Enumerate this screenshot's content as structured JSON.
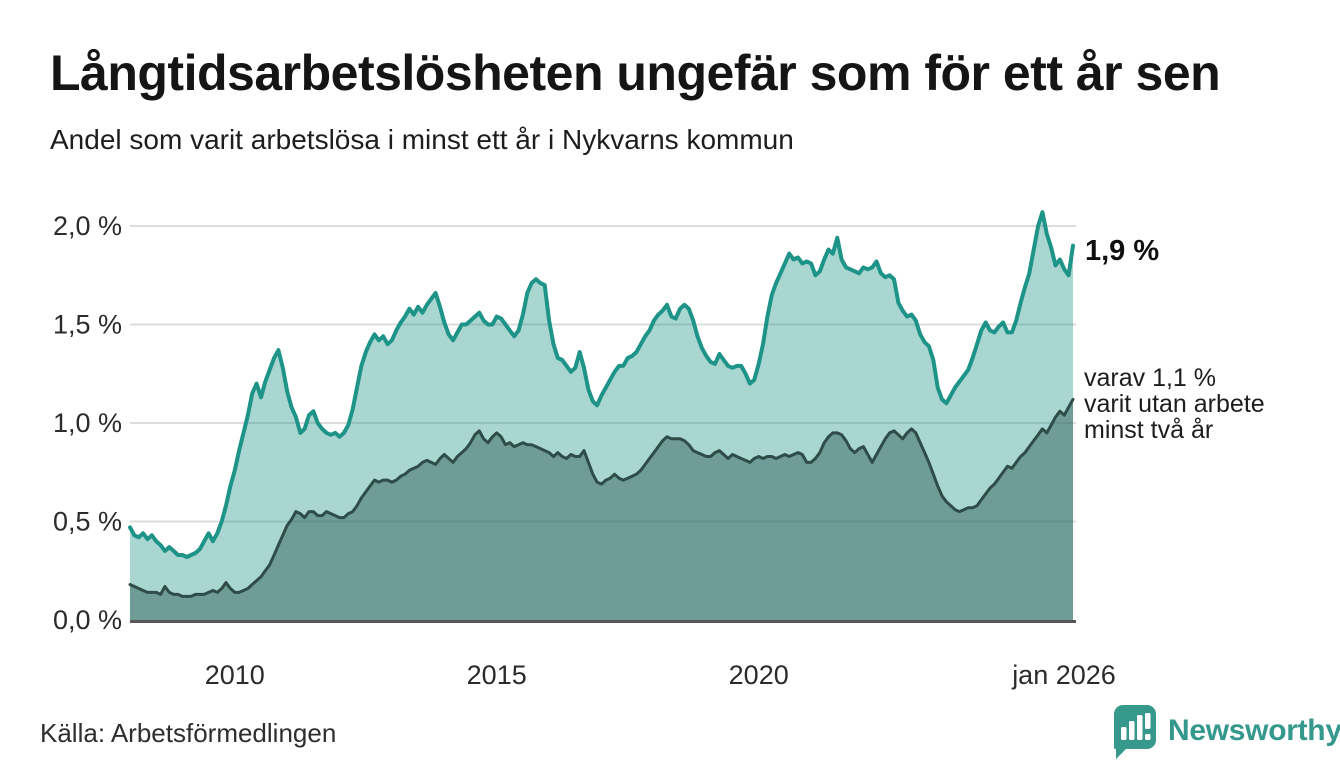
{
  "header": {
    "title": "Långtidsarbetslösheten ungefär som för ett år sen",
    "subtitle": "Andel som varit arbetslösa i minst ett år i Nykvarns kommun"
  },
  "footer": {
    "source": "Källa: Arbetsförmedlingen",
    "brand": "Newsworthy",
    "brand_color": "#35988c"
  },
  "chart_data": {
    "type": "area",
    "title": "Långtidsarbetslösheten ungefär som för ett år sen",
    "subtitle": "Andel som varit arbetslösa i minst ett år i Nykvarns kommun",
    "unit": "%",
    "layout": "overlaid-subset",
    "grid": "horizontal-only",
    "colors": {
      "gridline": "#dcdcdc",
      "baseline": "#565656",
      "accent_teal": "#1d9487",
      "dark_slate": "#2e4d48"
    },
    "y_axis": {
      "range": [
        0,
        2.15
      ],
      "ticks": [
        {
          "label": "0,0 %",
          "value": 0
        },
        {
          "label": "0,5 %",
          "value": 0.5
        },
        {
          "label": "1,0 %",
          "value": 1.0
        },
        {
          "label": "1,5 %",
          "value": 1.5
        },
        {
          "label": "2,0 %",
          "value": 2.0
        }
      ]
    },
    "x_axis": {
      "start": "2008-01",
      "end": "2026-01",
      "ticks": [
        {
          "label": "2010",
          "month_index": 24
        },
        {
          "label": "2015",
          "month_index": 84
        },
        {
          "label": "2020",
          "month_index": 144
        },
        {
          "label": "jan 2026",
          "month_index": 216
        }
      ]
    },
    "annotations": {
      "latest": "1,9 %",
      "subset": "varav 1,1 %\nvarit utan arbete\nminst två år"
    },
    "series": [
      {
        "name": "Andel arbetslösa minst ett år",
        "latest_label": "1,9 %",
        "color": "#1d9487",
        "fill": "rgba(29,148,132,0.38)",
        "values": [
          0.47,
          0.43,
          0.42,
          0.44,
          0.41,
          0.43,
          0.4,
          0.38,
          0.35,
          0.37,
          0.35,
          0.33,
          0.33,
          0.32,
          0.33,
          0.34,
          0.36,
          0.4,
          0.44,
          0.4,
          0.44,
          0.5,
          0.58,
          0.68,
          0.76,
          0.86,
          0.95,
          1.04,
          1.15,
          1.2,
          1.13,
          1.21,
          1.27,
          1.33,
          1.37,
          1.28,
          1.16,
          1.08,
          1.03,
          0.95,
          0.97,
          1.04,
          1.06,
          1.0,
          0.97,
          0.95,
          0.94,
          0.95,
          0.93,
          0.95,
          0.99,
          1.07,
          1.18,
          1.29,
          1.36,
          1.41,
          1.45,
          1.42,
          1.44,
          1.4,
          1.42,
          1.47,
          1.51,
          1.54,
          1.58,
          1.55,
          1.59,
          1.56,
          1.6,
          1.63,
          1.66,
          1.59,
          1.51,
          1.45,
          1.42,
          1.46,
          1.5,
          1.5,
          1.52,
          1.54,
          1.56,
          1.52,
          1.5,
          1.5,
          1.54,
          1.53,
          1.5,
          1.47,
          1.44,
          1.47,
          1.55,
          1.66,
          1.71,
          1.73,
          1.71,
          1.7,
          1.52,
          1.4,
          1.33,
          1.32,
          1.29,
          1.26,
          1.28,
          1.36,
          1.28,
          1.17,
          1.11,
          1.09,
          1.14,
          1.18,
          1.22,
          1.26,
          1.29,
          1.29,
          1.33,
          1.34,
          1.36,
          1.4,
          1.44,
          1.47,
          1.52,
          1.55,
          1.57,
          1.6,
          1.54,
          1.53,
          1.58,
          1.6,
          1.58,
          1.52,
          1.44,
          1.38,
          1.34,
          1.31,
          1.3,
          1.35,
          1.32,
          1.29,
          1.28,
          1.29,
          1.29,
          1.25,
          1.2,
          1.22,
          1.3,
          1.4,
          1.54,
          1.65,
          1.71,
          1.76,
          1.81,
          1.86,
          1.83,
          1.84,
          1.81,
          1.82,
          1.81,
          1.75,
          1.77,
          1.83,
          1.88,
          1.86,
          1.94,
          1.83,
          1.79,
          1.78,
          1.77,
          1.76,
          1.79,
          1.78,
          1.79,
          1.82,
          1.76,
          1.74,
          1.75,
          1.73,
          1.61,
          1.57,
          1.54,
          1.55,
          1.52,
          1.45,
          1.41,
          1.39,
          1.32,
          1.18,
          1.12,
          1.1,
          1.14,
          1.18,
          1.21,
          1.24,
          1.27,
          1.33,
          1.4,
          1.47,
          1.51,
          1.47,
          1.46,
          1.49,
          1.51,
          1.46,
          1.46,
          1.52,
          1.61,
          1.69,
          1.76,
          1.88,
          2.0,
          2.07,
          1.96,
          1.89,
          1.8,
          1.83,
          1.78,
          1.75,
          1.9
        ]
      },
      {
        "name": "varav utan arbete minst två år",
        "latest_label": "1,1 %",
        "color": "#2e4d48",
        "fill": "rgba(53,97,92,0.50)",
        "values": [
          0.18,
          0.17,
          0.16,
          0.15,
          0.14,
          0.14,
          0.14,
          0.13,
          0.17,
          0.14,
          0.13,
          0.13,
          0.12,
          0.12,
          0.12,
          0.13,
          0.13,
          0.13,
          0.14,
          0.15,
          0.14,
          0.16,
          0.19,
          0.16,
          0.14,
          0.14,
          0.15,
          0.16,
          0.18,
          0.2,
          0.22,
          0.25,
          0.28,
          0.33,
          0.38,
          0.43,
          0.48,
          0.51,
          0.55,
          0.54,
          0.52,
          0.55,
          0.55,
          0.53,
          0.53,
          0.55,
          0.54,
          0.53,
          0.52,
          0.52,
          0.54,
          0.55,
          0.58,
          0.62,
          0.65,
          0.68,
          0.71,
          0.7,
          0.71,
          0.71,
          0.7,
          0.71,
          0.73,
          0.74,
          0.76,
          0.77,
          0.78,
          0.8,
          0.81,
          0.8,
          0.79,
          0.82,
          0.84,
          0.82,
          0.8,
          0.83,
          0.85,
          0.87,
          0.9,
          0.94,
          0.96,
          0.92,
          0.9,
          0.93,
          0.95,
          0.93,
          0.89,
          0.9,
          0.88,
          0.89,
          0.9,
          0.89,
          0.89,
          0.88,
          0.87,
          0.86,
          0.85,
          0.83,
          0.85,
          0.83,
          0.82,
          0.84,
          0.83,
          0.83,
          0.86,
          0.8,
          0.74,
          0.7,
          0.69,
          0.71,
          0.72,
          0.74,
          0.72,
          0.71,
          0.72,
          0.73,
          0.74,
          0.76,
          0.79,
          0.82,
          0.85,
          0.88,
          0.91,
          0.93,
          0.92,
          0.92,
          0.92,
          0.91,
          0.89,
          0.86,
          0.85,
          0.84,
          0.83,
          0.83,
          0.85,
          0.86,
          0.84,
          0.82,
          0.84,
          0.83,
          0.82,
          0.81,
          0.8,
          0.82,
          0.83,
          0.82,
          0.83,
          0.83,
          0.82,
          0.83,
          0.84,
          0.83,
          0.84,
          0.85,
          0.84,
          0.8,
          0.8,
          0.82,
          0.85,
          0.9,
          0.93,
          0.95,
          0.95,
          0.94,
          0.91,
          0.87,
          0.85,
          0.87,
          0.88,
          0.84,
          0.8,
          0.84,
          0.88,
          0.92,
          0.95,
          0.96,
          0.94,
          0.92,
          0.95,
          0.97,
          0.95,
          0.9,
          0.85,
          0.8,
          0.74,
          0.68,
          0.63,
          0.6,
          0.58,
          0.56,
          0.55,
          0.56,
          0.57,
          0.57,
          0.58,
          0.61,
          0.64,
          0.67,
          0.69,
          0.72,
          0.75,
          0.78,
          0.77,
          0.8,
          0.83,
          0.85,
          0.88,
          0.91,
          0.94,
          0.97,
          0.95,
          0.99,
          1.03,
          1.06,
          1.04,
          1.08,
          1.12
        ]
      }
    ]
  }
}
